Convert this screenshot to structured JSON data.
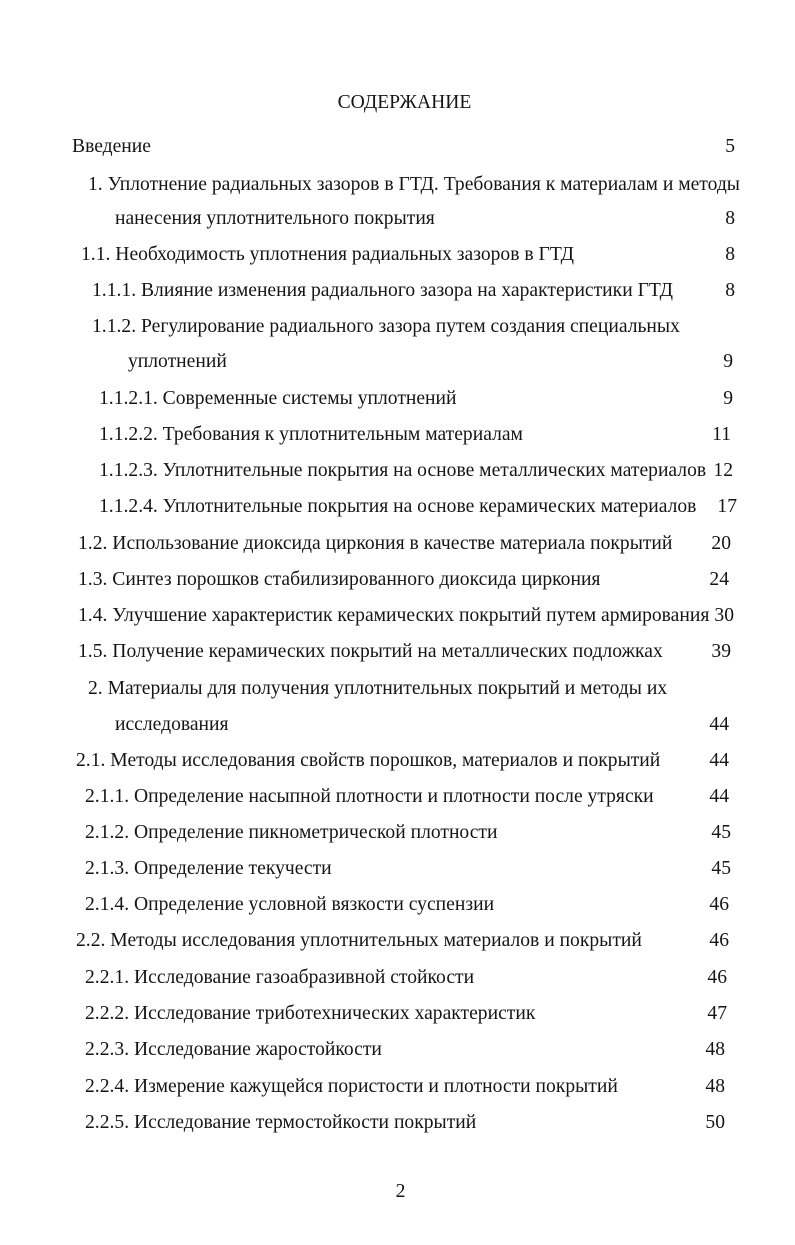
{
  "title": "СОДЕРЖАНИЕ",
  "entries": [
    {
      "lines": [
        "Введение"
      ],
      "page": "5"
    },
    {
      "lines": [
        "1. Уплотнение радиальных зазоров в ГТД. Требования к материалам и методы",
        "нанесения уплотнительного покрытия"
      ],
      "page": "8"
    },
    {
      "lines": [
        "1.1. Необходимость уплотнения радиальных зазоров в ГТД"
      ],
      "page": "8"
    },
    {
      "lines": [
        "1.1.1. Влияние изменения радиального зазора на характеристики ГТД"
      ],
      "page": "8"
    },
    {
      "lines": [
        "1.1.2. Регулирование радиального зазора путем создания специальных",
        "уплотнений"
      ],
      "page": "9"
    },
    {
      "lines": [
        "1.1.2.1. Современные системы уплотнений"
      ],
      "page": "9"
    },
    {
      "lines": [
        "1.1.2.2. Требования к уплотнительным материалам"
      ],
      "page": "11"
    },
    {
      "lines": [
        "1.1.2.3. Уплотнительные покрытия на основе металлических материалов"
      ],
      "page": "12"
    },
    {
      "lines": [
        "1.1.2.4. Уплотнительные покрытия на основе керамических материалов"
      ],
      "page": "17"
    },
    {
      "lines": [
        "1.2. Использование диоксида циркония в качестве материала покрытий"
      ],
      "page": "20"
    },
    {
      "lines": [
        "1.3. Синтез порошков стабилизированного диоксида циркония"
      ],
      "page": "24"
    },
    {
      "lines": [
        "1.4. Улучшение характеристик керамических покрытий путем армирования"
      ],
      "page": "30"
    },
    {
      "lines": [
        "1.5. Получение керамических покрытий на металлических подложках"
      ],
      "page": "39"
    },
    {
      "lines": [
        "2. Материалы для получения уплотнительных покрытий и методы их",
        "исследования"
      ],
      "page": "44"
    },
    {
      "lines": [
        "2.1. Методы исследования свойств порошков, материалов и покрытий"
      ],
      "page": "44"
    },
    {
      "lines": [
        "2.1.1. Определение насыпной плотности и плотности после утряски"
      ],
      "page": "44"
    },
    {
      "lines": [
        "2.1.2. Определение пикнометрической плотности"
      ],
      "page": "45"
    },
    {
      "lines": [
        "2.1.3. Определение текучести"
      ],
      "page": "45"
    },
    {
      "lines": [
        "2.1.4. Определение условной вязкости суспензии"
      ],
      "page": "46"
    },
    {
      "lines": [
        "2.2. Методы исследования уплотнительных материалов и покрытий"
      ],
      "page": "46"
    },
    {
      "lines": [
        "2.2.1. Исследование газоабразивной стойкости"
      ],
      "page": "46"
    },
    {
      "lines": [
        "2.2.2. Исследование триботехнических характеристик"
      ],
      "page": "47"
    },
    {
      "lines": [
        "2.2.3. Исследование жаростойкости"
      ],
      "page": "48"
    },
    {
      "lines": [
        "2.2.4. Измерение кажущейся пористости и плотности покрытий"
      ],
      "page": "48"
    },
    {
      "lines": [
        "2.2.5. Исследование термостойкости покрытий"
      ],
      "page": "50"
    }
  ],
  "page_number": "2"
}
